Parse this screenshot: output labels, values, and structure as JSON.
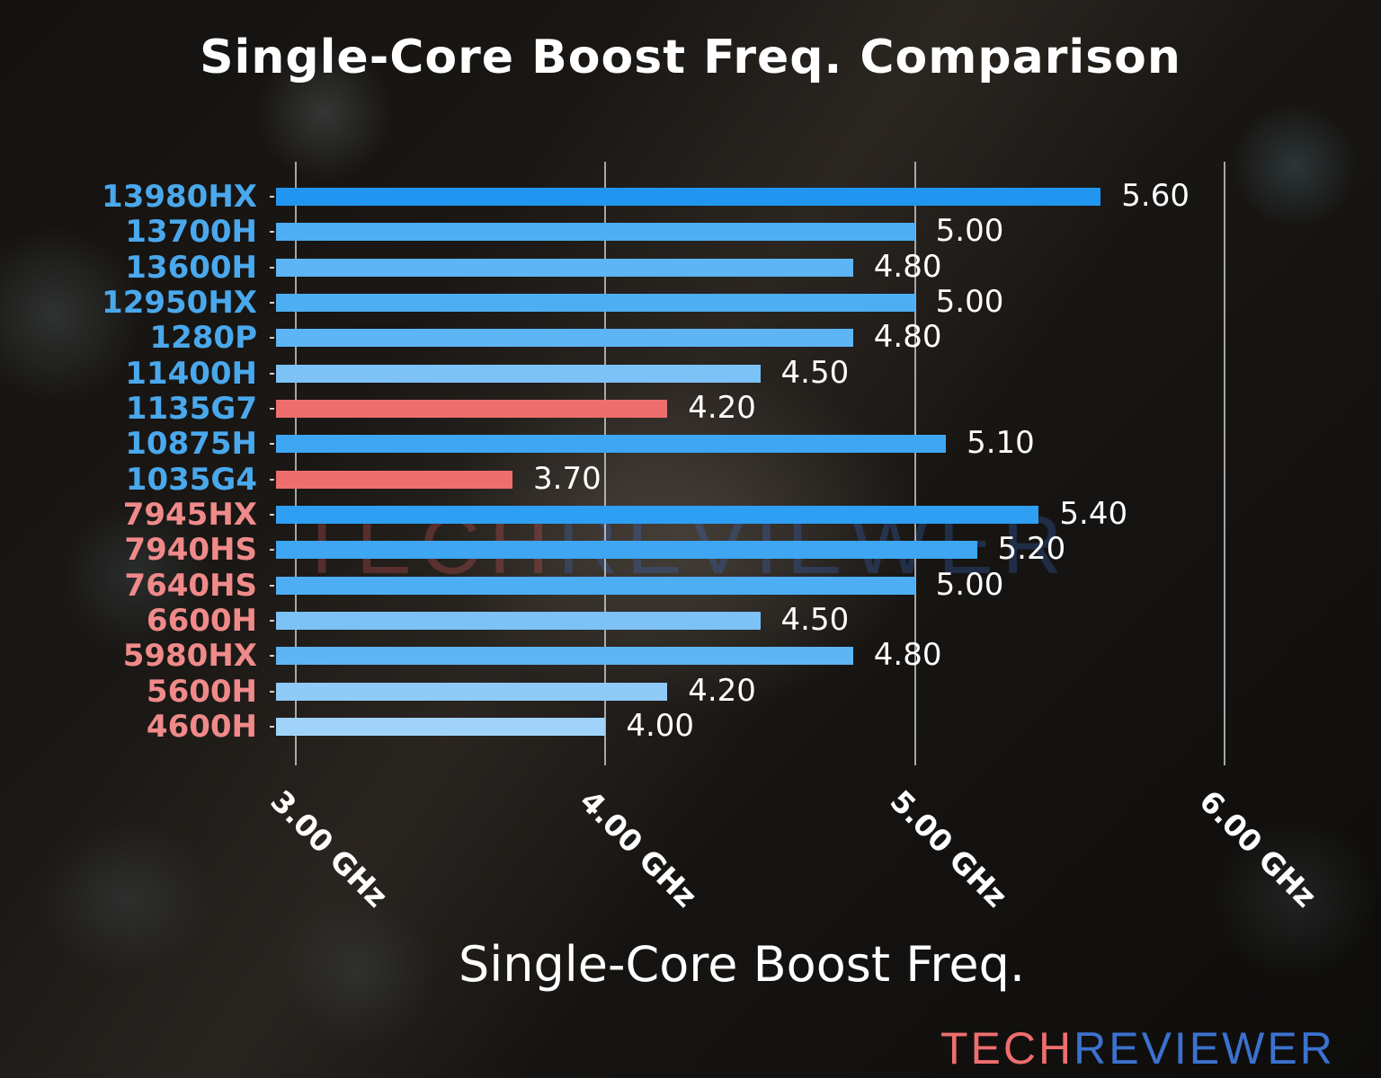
{
  "title": "Single-Core Boost Freq. Comparison",
  "watermark": {
    "part1": "TECH",
    "part2": "REVIEWER"
  },
  "logo": {
    "part1": "TECH",
    "part2": "REVIEWER"
  },
  "chart_data": {
    "type": "bar",
    "orientation": "horizontal",
    "title": "Single-Core Boost Freq. Comparison",
    "xlabel": "Single-Core Boost Freq.",
    "ylabel": "",
    "xlim": [
      2.94,
      6.0
    ],
    "xticks": [
      3.0,
      4.0,
      5.0,
      6.0
    ],
    "xtick_labels": [
      "3.00 GHz",
      "4.00 GHz",
      "5.00 GHz",
      "6.00 GHz"
    ],
    "grid": "vertical lines at x ticks",
    "legend": "none",
    "categories": [
      "13980HX",
      "13700H",
      "13600H",
      "12950HX",
      "1280P",
      "11400H",
      "1135G7",
      "10875H",
      "1035G4",
      "7945HX",
      "7940HS",
      "7640HS",
      "6600H",
      "5980HX",
      "5600H",
      "4600H"
    ],
    "values": [
      5.6,
      5.0,
      4.8,
      5.0,
      4.8,
      4.5,
      4.2,
      5.1,
      3.7,
      5.4,
      5.2,
      5.0,
      4.5,
      4.8,
      4.2,
      4.0
    ],
    "value_labels": [
      "5.60",
      "5.00",
      "4.80",
      "5.00",
      "4.80",
      "4.50",
      "4.20",
      "5.10",
      "3.70",
      "5.40",
      "5.20",
      "5.00",
      "4.50",
      "4.80",
      "4.20",
      "4.00"
    ],
    "label_colors": [
      "#4aa8ec",
      "#4aa8ec",
      "#4aa8ec",
      "#4aa8ec",
      "#4aa8ec",
      "#4aa8ec",
      "#4aa8ec",
      "#4aa8ec",
      "#4aa8ec",
      "#f08a8a",
      "#f08a8a",
      "#f08a8a",
      "#f08a8a",
      "#f08a8a",
      "#f08a8a",
      "#f08a8a"
    ],
    "bar_colors": [
      "#2196f0",
      "#4eaef4",
      "#5db5f5",
      "#4eaef4",
      "#5db5f5",
      "#7cc2f7",
      "#ee6e6e",
      "#3ea6f3",
      "#ee6e6e",
      "#2e9ff2",
      "#3ea6f3",
      "#4eaef4",
      "#7cc2f7",
      "#5db5f5",
      "#90cbf8",
      "#a0d3f9"
    ]
  }
}
